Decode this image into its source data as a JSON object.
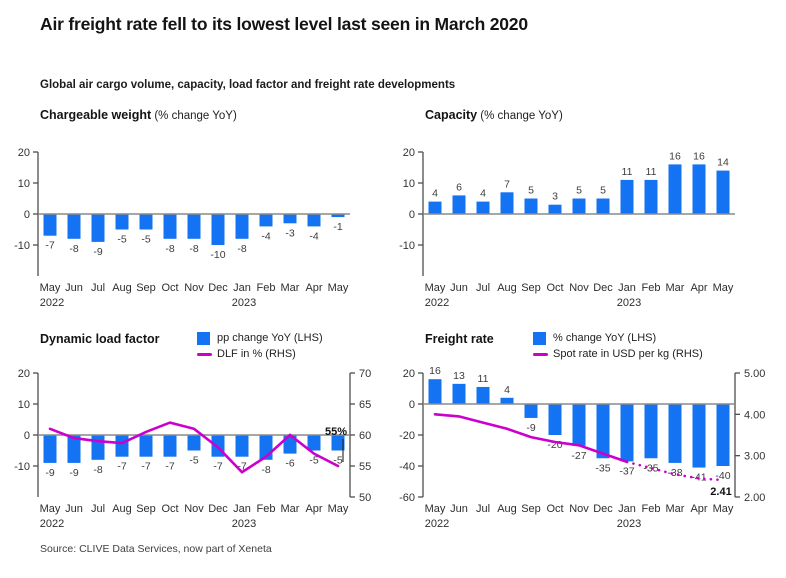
{
  "title": "Air freight rate fell to its lowest level last seen in March 2020",
  "subtitle": "Global air cargo volume, capacity, load factor and freight rate developments",
  "source": "Source: CLIVE Data Services, now part of Xeneta",
  "colors": {
    "bar_blue": "#1473F2",
    "line_magenta": "#CC00CC"
  },
  "chart_data": [
    {
      "id": "chargeable-weight",
      "type": "bar",
      "title": "Chargeable weight",
      "title_suffix": " (% change YoY)",
      "categories": [
        "May",
        "Jun",
        "Jul",
        "Aug",
        "Sep",
        "Oct",
        "Nov",
        "Dec",
        "Jan",
        "Feb",
        "Mar",
        "Apr",
        "May"
      ],
      "year_labels": [
        {
          "index": 0,
          "label": "2022"
        },
        {
          "index": 8,
          "label": "2023"
        }
      ],
      "values": [
        -7,
        -8,
        -9,
        -5,
        -5,
        -8,
        -8,
        -10,
        -8,
        -4,
        -3,
        -4,
        -1
      ],
      "lhs_ticks": [
        20,
        10,
        0,
        -10
      ],
      "ylim": [
        -20,
        20
      ],
      "grid": false,
      "legend_position": "none"
    },
    {
      "id": "capacity",
      "type": "bar",
      "title": "Capacity",
      "title_suffix": " (% change YoY)",
      "categories": [
        "May",
        "Jun",
        "Jul",
        "Aug",
        "Sep",
        "Oct",
        "Nov",
        "Dec",
        "Jan",
        "Feb",
        "Mar",
        "Apr",
        "May"
      ],
      "year_labels": [
        {
          "index": 0,
          "label": "2022"
        },
        {
          "index": 8,
          "label": "2023"
        }
      ],
      "values": [
        4,
        6,
        4,
        7,
        5,
        3,
        5,
        5,
        11,
        11,
        16,
        16,
        14
      ],
      "lhs_ticks": [
        20,
        10,
        0,
        -10
      ],
      "ylim": [
        -20,
        20
      ],
      "grid": false,
      "legend_position": "none"
    },
    {
      "id": "dynamic-load-factor",
      "type": "bar+line",
      "title": "Dynamic load factor",
      "title_suffix": "",
      "legend": [
        {
          "swatch": "bar",
          "label": "pp change YoY (LHS)"
        },
        {
          "swatch": "line",
          "label": "DLF in % (RHS)"
        }
      ],
      "legend_position": "top-right",
      "categories": [
        "May",
        "Jun",
        "Jul",
        "Aug",
        "Sep",
        "Oct",
        "Nov",
        "Dec",
        "Jan",
        "Feb",
        "Mar",
        "Apr",
        "May"
      ],
      "year_labels": [
        {
          "index": 0,
          "label": "2022"
        },
        {
          "index": 8,
          "label": "2023"
        }
      ],
      "values": [
        -9,
        -9,
        -8,
        -7,
        -7,
        -7,
        -5,
        -7,
        -7,
        -8,
        -6,
        -5,
        -5
      ],
      "line_values": [
        61,
        59.5,
        59,
        58.7,
        60.5,
        62,
        61,
        58,
        54,
        56.5,
        60,
        57,
        55
      ],
      "lhs_ticks": [
        20,
        10,
        0,
        -10
      ],
      "ylim": [
        -20,
        20
      ],
      "rhs_ticks": [
        70,
        65,
        60,
        55,
        50
      ],
      "rhs_ylim": [
        50,
        70
      ],
      "grid": false,
      "annotation": {
        "text": "55%",
        "position": "above-end",
        "leader": true
      }
    },
    {
      "id": "freight-rate",
      "type": "bar+line",
      "title": "Freight rate",
      "title_suffix": "",
      "legend": [
        {
          "swatch": "bar",
          "label": "% change YoY (LHS)"
        },
        {
          "swatch": "line",
          "label": "Spot rate in USD per kg (RHS)"
        }
      ],
      "legend_position": "top-right",
      "categories": [
        "May",
        "Jun",
        "Jul",
        "Aug",
        "Sep",
        "Oct",
        "Nov",
        "Dec",
        "Jan",
        "Feb",
        "Mar",
        "Apr",
        "May"
      ],
      "year_labels": [
        {
          "index": 0,
          "label": "2022"
        },
        {
          "index": 8,
          "label": "2023"
        }
      ],
      "values": [
        16,
        13,
        11,
        4,
        -9,
        -20,
        -27,
        -35,
        -37,
        -35,
        -38,
        -41,
        -40
      ],
      "line_values": [
        4.0,
        3.95,
        3.8,
        3.65,
        3.45,
        3.33,
        3.25,
        3.05,
        2.85,
        2.7,
        2.55,
        2.45,
        2.41
      ],
      "line_dotted_from": 8,
      "lhs_ticks": [
        20,
        0,
        -20,
        -40,
        -60
      ],
      "ylim": [
        -60,
        20
      ],
      "rhs_ticks": [
        "5.00",
        "4.00",
        "3.00",
        "2.00"
      ],
      "rhs_ylim": [
        2,
        5
      ],
      "grid": false,
      "annotation": {
        "text": "2.41",
        "position": "below-end",
        "leader": false
      }
    }
  ]
}
